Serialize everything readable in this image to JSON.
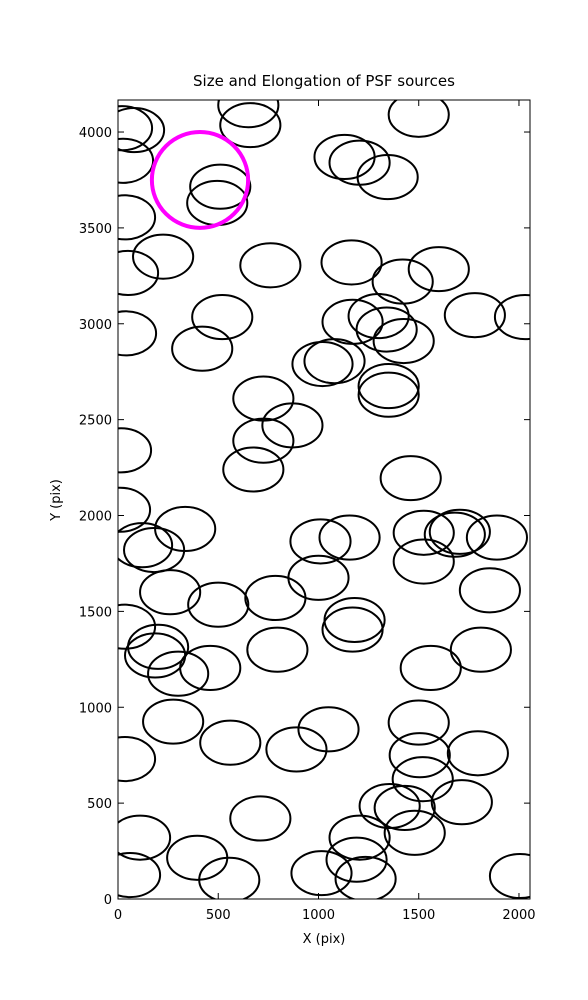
{
  "chart_data": {
    "type": "ellipse_scatter",
    "title": "Size and Elongation of PSF sources",
    "x_label": "X (pix)",
    "y_label": "Y (pix)",
    "xlim": [
      0,
      2055
    ],
    "ylim": [
      0,
      4167
    ],
    "xticks": [
      0,
      500,
      1000,
      1500,
      2000
    ],
    "yticks": [
      0,
      500,
      1000,
      1500,
      2000,
      2500,
      3000,
      3500,
      4000
    ],
    "series": [
      {
        "name": "sources",
        "color": "#000000",
        "width": 300,
        "height": 230,
        "x": [
          20,
          80,
          25,
          650,
          660,
          1500,
          1130,
          1205,
          1345,
          510,
          495,
          35,
          225,
          50,
          760,
          1165,
          1420,
          1600,
          520,
          1780,
          2030,
          40,
          420,
          1170,
          1300,
          1340,
          1425,
          1020,
          1080,
          1350,
          1350,
          725,
          870,
          725,
          675,
          15,
          1460,
          10,
          335,
          120,
          180,
          1010,
          1155,
          1525,
          1680,
          1705,
          1890,
          1525,
          1000,
          260,
          500,
          785,
          1855,
          35,
          1180,
          1170,
          200,
          185,
          300,
          460,
          795,
          1810,
          1560,
          275,
          560,
          890,
          1050,
          1500,
          1505,
          1795,
          1520,
          35,
          1715,
          1355,
          1430,
          1480,
          710,
          110,
          1205,
          1190,
          395,
          60,
          555,
          1015,
          1235,
          2005
        ],
        "y": [
          4020,
          4010,
          3850,
          4140,
          4036,
          4090,
          3870,
          3840,
          3765,
          3715,
          3630,
          3555,
          3350,
          3265,
          3305,
          3320,
          3220,
          3285,
          3035,
          3045,
          3035,
          2950,
          2870,
          3010,
          3040,
          2970,
          2910,
          2790,
          2805,
          2675,
          2630,
          2610,
          2470,
          2390,
          2240,
          2340,
          2195,
          2030,
          1930,
          1845,
          1820,
          1865,
          1885,
          1910,
          1900,
          1915,
          1885,
          1760,
          1675,
          1600,
          1535,
          1570,
          1610,
          1420,
          1455,
          1405,
          1315,
          1270,
          1175,
          1205,
          1300,
          1300,
          1205,
          925,
          815,
          780,
          885,
          920,
          750,
          760,
          625,
          730,
          505,
          485,
          475,
          345,
          420,
          320,
          320,
          205,
          215,
          125,
          100,
          135,
          105,
          120
        ]
      },
      {
        "name": "highlight",
        "color": "#ff00ff",
        "width": 480,
        "height": 500,
        "x": [
          409
        ],
        "y": [
          3750
        ]
      }
    ]
  }
}
